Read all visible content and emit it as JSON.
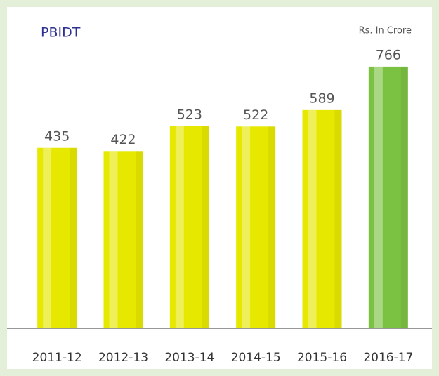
{
  "chart_data": {
    "type": "bar",
    "title": "PBIDT",
    "unit_label": "Rs. In Crore",
    "categories": [
      "2011-12",
      "2012-13",
      "2013-14",
      "2014-15",
      "2015-16",
      "2016-17"
    ],
    "values": [
      435,
      422,
      523,
      522,
      589,
      766
    ],
    "colors": [
      "#e6e800",
      "#e6e800",
      "#e6e800",
      "#e6e800",
      "#e6e800",
      "#7cc242"
    ],
    "ylim": [
      -300,
      800
    ],
    "yticks": []
  }
}
